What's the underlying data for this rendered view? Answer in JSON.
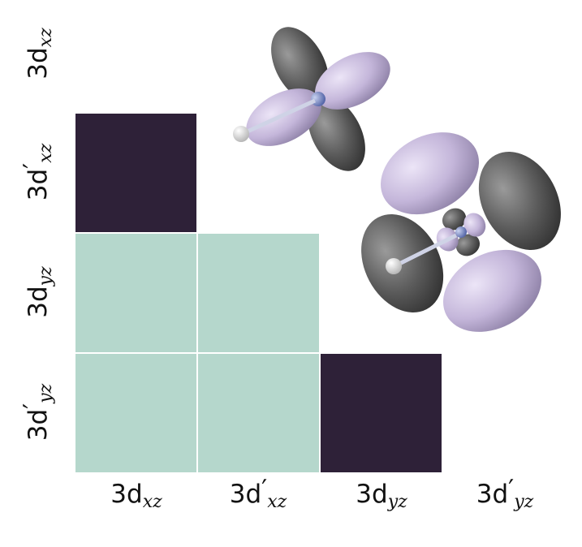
{
  "chart_data": {
    "type": "heatmap",
    "x_labels": [
      {
        "base": "3d",
        "prime": "",
        "sub": "xz"
      },
      {
        "base": "3d",
        "prime": "′",
        "sub": "xz"
      },
      {
        "base": "3d",
        "prime": "",
        "sub": "yz"
      },
      {
        "base": "3d",
        "prime": "′",
        "sub": "yz"
      }
    ],
    "y_labels": [
      {
        "base": "3d",
        "prime": "",
        "sub": "xz"
      },
      {
        "base": "3d",
        "prime": "′",
        "sub": "xz"
      },
      {
        "base": "3d",
        "prime": "",
        "sub": "yz"
      },
      {
        "base": "3d",
        "prime": "′",
        "sub": "yz"
      }
    ],
    "triangle": "lower",
    "cells": [
      {
        "row": 1,
        "col": 0,
        "level": "dark"
      },
      {
        "row": 2,
        "col": 0,
        "level": "light"
      },
      {
        "row": 2,
        "col": 1,
        "level": "light"
      },
      {
        "row": 3,
        "col": 0,
        "level": "light"
      },
      {
        "row": 3,
        "col": 1,
        "level": "light"
      },
      {
        "row": 3,
        "col": 2,
        "level": "dark"
      }
    ],
    "colors": {
      "dark": "#2e2138",
      "light": "#b5d7cc"
    },
    "grid": false,
    "legend": "none"
  },
  "insets": [
    {
      "name": "orbital-3dxz",
      "lobe_colors": [
        "#5a5a5a",
        "#c4b6da"
      ],
      "atom_color": "#7e8fc8"
    },
    {
      "name": "orbital-3dyz-prime",
      "lobe_colors": [
        "#5a5a5a",
        "#c4b6da"
      ],
      "atom_color": "#7e8fc8"
    }
  ]
}
